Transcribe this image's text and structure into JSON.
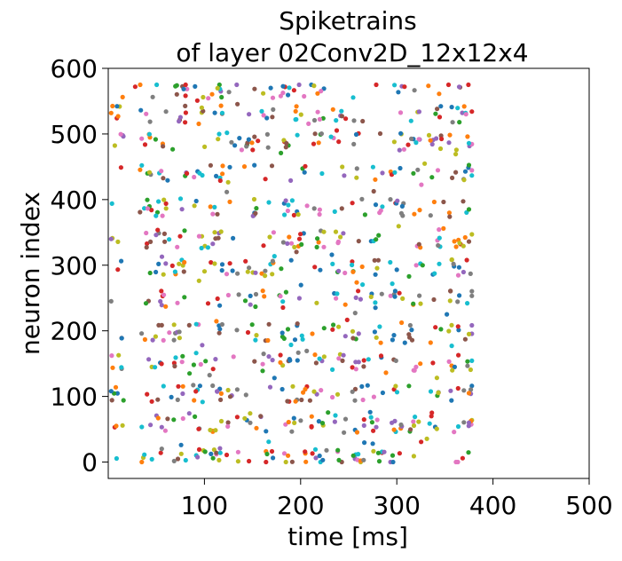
{
  "chart_data": {
    "type": "scatter",
    "title": "Spiketrains",
    "subtitle": "of layer 02Conv2D_12x12x4",
    "xlabel": "time [ms]",
    "ylabel": "neuron index",
    "xlim": [
      0,
      500
    ],
    "ylim": [
      -25,
      600
    ],
    "x_ticks": [
      100,
      200,
      300,
      400,
      500
    ],
    "y_ticks": [
      0,
      100,
      200,
      300,
      400,
      500,
      600
    ],
    "x_tick_labels": [
      "100",
      "200",
      "300",
      "400",
      "500"
    ],
    "y_tick_labels": [
      "0",
      "100",
      "200",
      "300",
      "400",
      "500",
      "600"
    ],
    "grid": false,
    "legend": "none",
    "time_range": [
      3,
      378
    ],
    "neuron_range": [
      0,
      575
    ],
    "marker_colors": [
      "#1f77b4",
      "#ff7f0e",
      "#2ca02c",
      "#d62728",
      "#9467bd",
      "#8c564b",
      "#e377c2",
      "#7f7f7f",
      "#bcbd22",
      "#17becf"
    ],
    "neuron_bands": [
      {
        "center": 8,
        "count": 70
      },
      {
        "center": 58,
        "count": 70
      },
      {
        "center": 105,
        "count": 62
      },
      {
        "center": 152,
        "count": 55
      },
      {
        "center": 198,
        "count": 62
      },
      {
        "center": 248,
        "count": 55
      },
      {
        "center": 296,
        "count": 60
      },
      {
        "center": 340,
        "count": 62
      },
      {
        "center": 388,
        "count": 58
      },
      {
        "center": 440,
        "count": 55
      },
      {
        "center": 488,
        "count": 62
      },
      {
        "center": 530,
        "count": 55
      },
      {
        "center": 568,
        "count": 45
      }
    ],
    "time_columns": [
      10,
      40,
      55,
      75,
      95,
      112,
      130,
      148,
      165,
      185,
      200,
      218,
      240,
      260,
      280,
      300,
      318,
      340,
      360,
      375
    ],
    "sample_spikes": [
      {
        "t": 3,
        "n": 532
      },
      {
        "t": 3,
        "n": 340
      },
      {
        "t": 3,
        "n": 245
      },
      {
        "t": 3,
        "n": 108
      },
      {
        "t": 28,
        "n": 572
      },
      {
        "t": 372,
        "n": 530
      },
      {
        "t": 375,
        "n": 486
      },
      {
        "t": 375,
        "n": 385
      },
      {
        "t": 375,
        "n": 336
      },
      {
        "t": 375,
        "n": 195
      },
      {
        "t": 375,
        "n": 105
      },
      {
        "t": 375,
        "n": 60
      },
      {
        "t": 245,
        "n": 45
      },
      {
        "t": 275,
        "n": 28
      },
      {
        "t": 308,
        "n": 572
      }
    ]
  }
}
